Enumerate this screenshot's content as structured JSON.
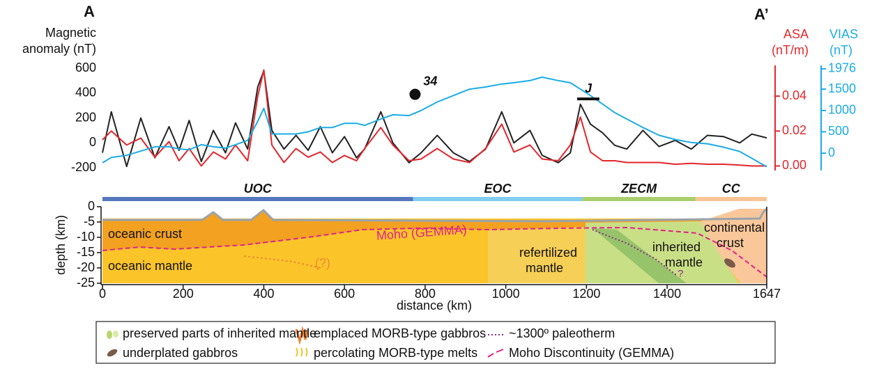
{
  "chart_data": [
    {
      "type": "line",
      "title": "A",
      "title_right": "A’",
      "ylabel": [
        "Magnetic",
        "anomaly (nT)"
      ],
      "y2label": [
        "ASA",
        "(nT/m)"
      ],
      "y3label": [
        "VIAS",
        "(nT)"
      ],
      "xlim": [
        0,
        1647
      ],
      "x": [
        0,
        22,
        60,
        95,
        130,
        165,
        190,
        215,
        245,
        275,
        305,
        330,
        360,
        385,
        400,
        420,
        450,
        480,
        510,
        540,
        570,
        600,
        630,
        650,
        690,
        720,
        760,
        790,
        830,
        870,
        910,
        950,
        990,
        1020,
        1060,
        1090,
        1130,
        1160,
        1185,
        1210,
        1240,
        1270,
        1300,
        1340,
        1380,
        1420,
        1460,
        1500,
        1540,
        1580,
        1610,
        1647
      ],
      "ylim": [
        -200,
        600
      ],
      "yticks": [
        -200,
        0,
        200,
        400,
        600
      ],
      "y2lim": [
        -0.001,
        0.056
      ],
      "y2ticks": [
        {
          "value": 0,
          "label": "0.00"
        },
        {
          "value": 0.02,
          "label": "0.02"
        },
        {
          "value": 0.04,
          "label": "0.04"
        }
      ],
      "y3lim": [
        -340,
        1990
      ],
      "y3ticks": [
        0,
        500,
        1000,
        1500,
        1976
      ],
      "series": [
        {
          "color": "#222222",
          "axis": "y",
          "values": [
            -80,
            250,
            -190,
            200,
            -120,
            130,
            -60,
            180,
            -150,
            100,
            -80,
            160,
            -50,
            450,
            580,
            100,
            -50,
            60,
            -60,
            130,
            -80,
            50,
            -120,
            -50,
            250,
            0,
            -160,
            -80,
            60,
            -80,
            -150,
            -50,
            250,
            0,
            100,
            -100,
            -160,
            -80,
            310,
            150,
            80,
            -20,
            -50,
            100,
            -30,
            20,
            -50,
            60,
            50,
            0,
            70,
            40
          ]
        },
        {
          "color": "#e2262b",
          "axis": "y2",
          "values": [
            0.015,
            0.02,
            0.012,
            0.016,
            0.005,
            0.014,
            0.003,
            0.01,
            0.0,
            0.008,
            0.004,
            0.012,
            0.003,
            0.04,
            0.055,
            0.012,
            0.002,
            0.01,
            0.005,
            0.008,
            0.002,
            0.006,
            0.003,
            0.01,
            0.022,
            0.012,
            0.003,
            0.004,
            0.01,
            0.004,
            0.002,
            0.01,
            0.024,
            0.008,
            0.012,
            0.004,
            0.003,
            0.012,
            0.028,
            0.008,
            0.003,
            0.003,
            0.002,
            0.002,
            0.002,
            0.001,
            0.0015,
            0.001,
            0.001,
            0.0005,
            0.0,
            0.0
          ]
        },
        {
          "color": "#1aace6",
          "axis": "y3",
          "values": [
            -225,
            -100,
            -50,
            50,
            150,
            150,
            100,
            80,
            200,
            150,
            120,
            200,
            300,
            750,
            1050,
            450,
            450,
            450,
            500,
            600,
            600,
            700,
            700,
            650,
            800,
            900,
            880,
            1000,
            1200,
            1350,
            1500,
            1550,
            1620,
            1650,
            1700,
            1780,
            1700,
            1650,
            1500,
            1350,
            1150,
            950,
            800,
            600,
            420,
            320,
            250,
            220,
            140,
            40,
            -120,
            -320
          ]
        }
      ],
      "annotations": [
        {
          "label": "34",
          "x": 775,
          "y": 390
        },
        {
          "label": "J",
          "x": [
            1177,
            1232
          ],
          "y": 353
        }
      ]
    },
    {
      "type": "cross-section",
      "xlabel": "distance (km)",
      "ylabel": "depth (km)",
      "xlim": [
        0,
        1647
      ],
      "xticks": [
        0,
        200,
        400,
        600,
        800,
        1000,
        1200,
        1400,
        1647
      ],
      "ylim": [
        -25,
        0
      ],
      "yticks": [
        0,
        -5,
        -10,
        -15,
        -20,
        -25
      ],
      "domains": [
        {
          "label": "UOC",
          "range": [
            0,
            770
          ],
          "color": "#5577bf"
        },
        {
          "label": "EOC",
          "range": [
            770,
            1190
          ],
          "color": "#7fcdef"
        },
        {
          "label": "ZECM",
          "range": [
            1190,
            1470
          ],
          "color": "#a9cf6a"
        },
        {
          "label": "CC",
          "range": [
            1470,
            1647
          ],
          "color": "#f8c493"
        }
      ],
      "labels": [
        "oceanic crust",
        "oceanic mantle",
        "Moho (GEMMA)",
        "(?)",
        "refertilized",
        "mantle",
        "inherited",
        "mantle",
        "continental",
        "crust",
        "?"
      ],
      "legend": [
        "preserved parts of inherited mantle",
        "underplated gabbros",
        "emplaced MORB-type gabbros",
        "percolating MORB-type melts",
        "~1300º paleotherm",
        "Moho Discontinuity (GEMMA)"
      ]
    }
  ]
}
